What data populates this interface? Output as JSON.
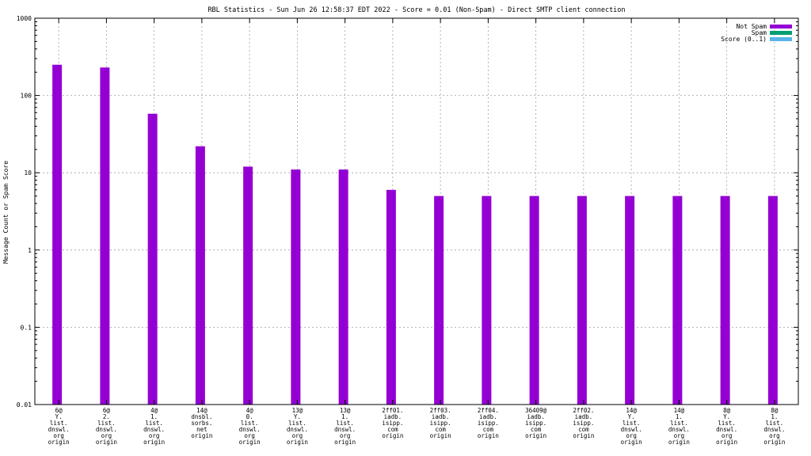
{
  "chart_data": {
    "type": "bar",
    "title": "RBL Statistics - Sun Jun 26 12:58:37 EDT 2022 - Score = 0.01 (Non-Spam) - Direct SMTP client connection",
    "xlabel": "",
    "ylabel": "Message Count or Spam Score",
    "yscale": "log",
    "ylim": [
      0.01,
      1000
    ],
    "y_ticks": [
      0.01,
      0.1,
      1,
      10,
      100,
      1000
    ],
    "y_tick_labels": [
      "0.01",
      "0.1",
      "1",
      "10",
      "100",
      "1000"
    ],
    "grid": true,
    "legend_position": "top-right",
    "categories": [
      [
        "6@",
        "Y.",
        "list.",
        "dnswl.",
        "org",
        "origin"
      ],
      [
        "6@",
        "2.",
        "list.",
        "dnswl.",
        "org",
        "origin"
      ],
      [
        "4@",
        "1.",
        "list.",
        "dnswl.",
        "org",
        "origin"
      ],
      [
        "14@",
        "dnsbl.",
        "sorbs.",
        "net",
        "origin"
      ],
      [
        "4@",
        "0.",
        "list.",
        "dnswl.",
        "org",
        "origin"
      ],
      [
        "13@",
        "Y.",
        "list.",
        "dnswl.",
        "org",
        "origin"
      ],
      [
        "13@",
        "1.",
        "list.",
        "dnswl.",
        "org",
        "origin"
      ],
      [
        "2ff01.",
        "iadb.",
        "isipp.",
        "com",
        "origin"
      ],
      [
        "2ff03.",
        "iadb.",
        "isipp.",
        "com",
        "origin"
      ],
      [
        "2ff04.",
        "iadb.",
        "isipp.",
        "com",
        "origin"
      ],
      [
        "36409@",
        "iadb.",
        "isipp.",
        "com",
        "origin"
      ],
      [
        "2ff02.",
        "iadb.",
        "isipp.",
        "com",
        "origin"
      ],
      [
        "14@",
        "Y.",
        "list.",
        "dnswl.",
        "org",
        "origin"
      ],
      [
        "14@",
        "1.",
        "list.",
        "dnswl.",
        "org",
        "origin"
      ],
      [
        "8@",
        "Y.",
        "list.",
        "dnswl.",
        "org",
        "origin"
      ],
      [
        "8@",
        "1.",
        "list.",
        "dnswl.",
        "org",
        "origin"
      ]
    ],
    "series": [
      {
        "name": "Not Spam",
        "color": "#9400d3",
        "values": [
          250,
          230,
          58,
          22,
          12,
          11,
          11,
          6,
          5,
          5,
          5,
          5,
          5,
          5,
          5,
          5
        ]
      },
      {
        "name": "Spam",
        "color": "#009e73",
        "values": [
          0,
          0,
          0,
          0,
          0,
          0,
          0,
          0,
          0,
          0,
          0,
          0,
          0,
          0,
          0,
          0
        ]
      },
      {
        "name": "Score (0..1)",
        "color": "#56b4e9",
        "values": [
          0,
          0,
          0,
          0,
          0,
          0,
          0,
          0,
          0,
          0,
          0,
          0,
          0,
          0,
          0,
          0
        ]
      }
    ]
  }
}
